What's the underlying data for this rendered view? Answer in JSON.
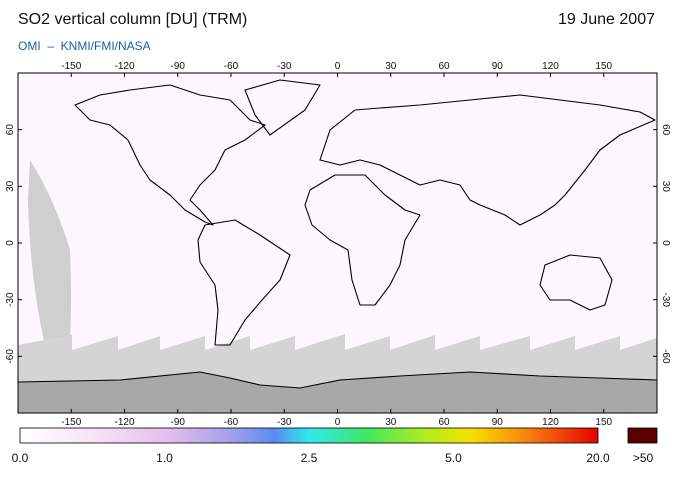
{
  "header": {
    "title": "SO2 vertical column [DU] (TRM)",
    "date": "19 June 2007",
    "subtitle": "OMI  –  KNMI/FMI/NASA"
  },
  "map": {
    "lon_ticks": [
      -150,
      -120,
      -90,
      -60,
      -30,
      0,
      30,
      60,
      90,
      120,
      150
    ],
    "lat_ticks": [
      60,
      30,
      0,
      -30,
      -60
    ]
  },
  "colorbar": {
    "labels": [
      "0.0",
      "1.0",
      "2.5",
      "5.0",
      "20.0"
    ],
    "over": ">50"
  }
}
